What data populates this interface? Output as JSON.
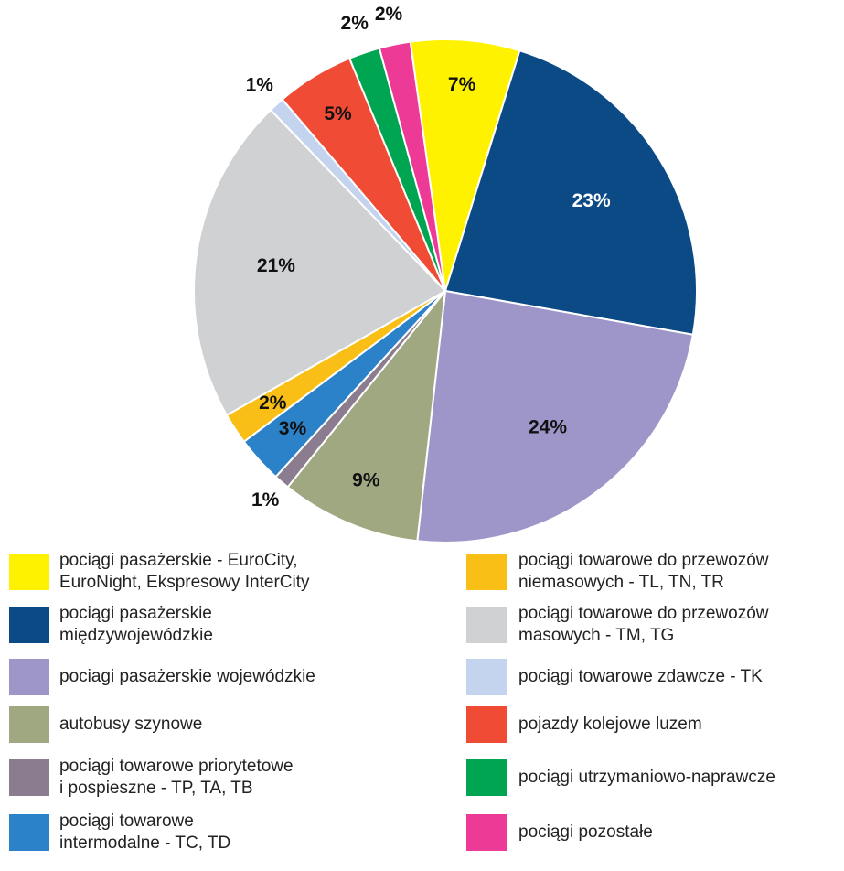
{
  "chart_data": {
    "type": "pie",
    "categories": [
      "pociągi pasażerskie - EuroCity,\nEuroNight, Ekspresowy InterCity",
      "pociągi pasażerskie\nmiędzywojewódzkie",
      "pociagi pasażerskie wojewódzkie",
      "autobusy szynowe",
      "pociągi towarowe priorytetowe\ni pospieszne - TP, TA, TB",
      "pociągi towarowe\nintermodalne - TC, TD",
      "pociągi towarowe do przewozów\nniemasowych - TL, TN, TR",
      "pociągi towarowe do przewozów\nmasowych - TM, TG",
      "pociągi towarowe zdawcze - TK",
      "pojazdy kolejowe luzem",
      "pociągi utrzymaniowo-naprawcze",
      "pociągi pozostałe"
    ],
    "values": [
      7,
      23,
      24,
      9,
      1,
      3,
      2,
      21,
      1,
      5,
      2,
      2
    ],
    "value_labels": [
      "7%",
      "23%",
      "24%",
      "9%",
      "1%",
      "3%",
      "2%",
      "21%",
      "1%",
      "5%",
      "2%",
      "2%"
    ],
    "colors": [
      "#fff200",
      "#0b4a85",
      "#9e96c9",
      "#a0a882",
      "#8b7d8f",
      "#2b82c9",
      "#f9bf16",
      "#d0d1d3",
      "#c5d4ee",
      "#ef4b35",
      "#00a551",
      "#ec3a96"
    ]
  }
}
